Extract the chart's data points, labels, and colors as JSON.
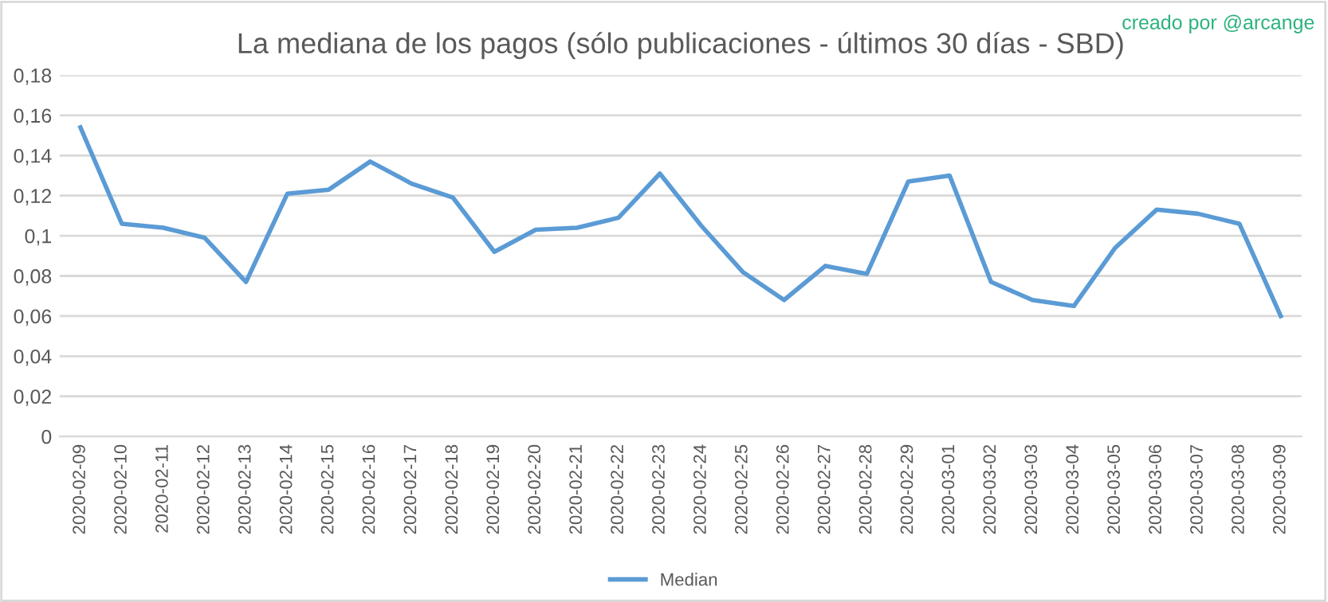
{
  "chart_data": {
    "type": "line",
    "title": "La mediana de los pagos (sólo publicaciones - últimos 30 días - SBD)",
    "annotations": [
      "creado por @arcange"
    ],
    "categories": [
      "2020-02-09",
      "2020-02-10",
      "2020-02-11",
      "2020-02-12",
      "2020-02-13",
      "2020-02-14",
      "2020-02-15",
      "2020-02-16",
      "2020-02-17",
      "2020-02-18",
      "2020-02-19",
      "2020-02-20",
      "2020-02-21",
      "2020-02-22",
      "2020-02-23",
      "2020-02-24",
      "2020-02-25",
      "2020-02-26",
      "2020-02-27",
      "2020-02-28",
      "2020-02-29",
      "2020-03-01",
      "2020-03-02",
      "2020-03-03",
      "2020-03-04",
      "2020-03-05",
      "2020-03-06",
      "2020-03-07",
      "2020-03-08",
      "2020-03-09"
    ],
    "series": [
      {
        "name": "Median",
        "color": "#5b9bd5",
        "values": [
          0.154,
          0.106,
          0.104,
          0.099,
          0.077,
          0.121,
          0.123,
          0.137,
          0.126,
          0.119,
          0.092,
          0.103,
          0.104,
          0.109,
          0.131,
          0.105,
          0.082,
          0.068,
          0.085,
          0.081,
          0.127,
          0.13,
          0.077,
          0.068,
          0.065,
          0.094,
          0.113,
          0.111,
          0.106,
          0.06
        ]
      }
    ],
    "ylim": [
      0,
      0.18
    ],
    "yticks": [
      0,
      {
        "value": 0.02,
        "label": "0,02"
      },
      {
        "value": 0.04,
        "label": "0,04"
      },
      {
        "value": 0.06,
        "label": "0,06"
      },
      {
        "value": 0.08,
        "label": "0,08"
      },
      {
        "value": 0.1,
        "label": "0,1"
      },
      {
        "value": 0.12,
        "label": "0,12"
      },
      {
        "value": 0.14,
        "label": "0,14"
      },
      {
        "value": 0.16,
        "label": "0,16"
      },
      {
        "value": 0.18,
        "label": "0,18"
      }
    ],
    "grid": "y",
    "legend": "bottom",
    "marker": "none",
    "line_style": "solid"
  }
}
